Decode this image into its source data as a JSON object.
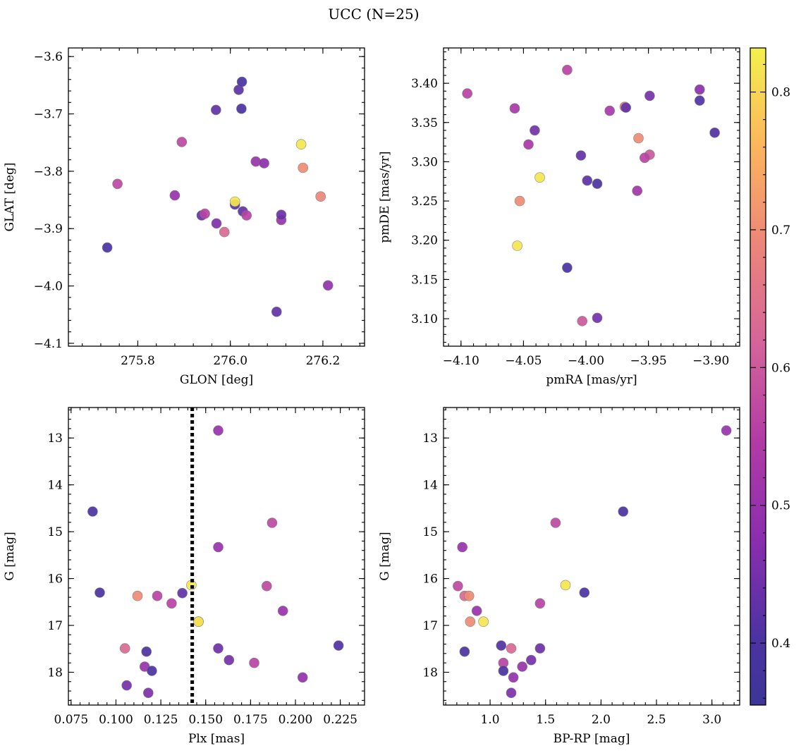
{
  "figure": {
    "title": "UCC (N=25)"
  },
  "chart_data": [
    {
      "type": "scatter",
      "xlabel": "GLON [deg]",
      "ylabel": "GLAT [deg]",
      "xlim": [
        275.65,
        276.29
      ],
      "ylim": [
        -4.105,
        -3.585
      ],
      "y_inverted": false,
      "x_ticks": [
        275.8,
        276.0,
        276.2
      ],
      "x_tick_labels": [
        "275.8",
        "276.0",
        "276.2"
      ],
      "y_ticks": [
        -4.1,
        -4.0,
        -3.9,
        -3.8,
        -3.7,
        -3.6
      ],
      "y_tick_labels": [
        "−4.1",
        "−4.0",
        "−3.9",
        "−3.8",
        "−3.7",
        "−3.6"
      ],
      "points": [
        {
          "x": 275.734,
          "y": -3.933,
          "c": 0.4
        },
        {
          "x": 275.756,
          "y": -3.822,
          "c": 0.57
        },
        {
          "x": 275.895,
          "y": -3.749,
          "c": 0.57
        },
        {
          "x": 275.88,
          "y": -3.842,
          "c": 0.5
        },
        {
          "x": 275.938,
          "y": -3.877,
          "c": 0.43
        },
        {
          "x": 275.945,
          "y": -3.874,
          "c": 0.56
        },
        {
          "x": 275.969,
          "y": -3.693,
          "c": 0.43
        },
        {
          "x": 275.97,
          "y": -3.891,
          "c": 0.46
        },
        {
          "x": 275.987,
          "y": -3.906,
          "c": 0.63
        },
        {
          "x": 276.01,
          "y": -3.858,
          "c": 0.42
        },
        {
          "x": 276.01,
          "y": -3.853,
          "c": 0.82
        },
        {
          "x": 276.018,
          "y": -3.658,
          "c": 0.42
        },
        {
          "x": 276.025,
          "y": -3.644,
          "c": 0.4
        },
        {
          "x": 276.024,
          "y": -3.691,
          "c": 0.4
        },
        {
          "x": 276.027,
          "y": -3.87,
          "c": 0.43
        },
        {
          "x": 276.035,
          "y": -3.877,
          "c": 0.56
        },
        {
          "x": 276.055,
          "y": -3.783,
          "c": 0.5
        },
        {
          "x": 276.073,
          "y": -3.786,
          "c": 0.48
        },
        {
          "x": 276.1,
          "y": -4.045,
          "c": 0.43
        },
        {
          "x": 276.11,
          "y": -3.885,
          "c": 0.5
        },
        {
          "x": 276.11,
          "y": -3.876,
          "c": 0.44
        },
        {
          "x": 276.153,
          "y": -3.753,
          "c": 0.82
        },
        {
          "x": 276.157,
          "y": -3.794,
          "c": 0.7
        },
        {
          "x": 276.195,
          "y": -3.844,
          "c": 0.69
        },
        {
          "x": 276.211,
          "y": -3.999,
          "c": 0.49
        }
      ]
    },
    {
      "type": "scatter",
      "xlabel": "pmRA [mas/yr]",
      "ylabel": "pmDE [mas/yr]",
      "xlim": [
        -4.114,
        -3.877
      ],
      "ylim": [
        3.065,
        3.445
      ],
      "y_inverted": false,
      "x_ticks": [
        -4.1,
        -4.05,
        -4.0,
        -3.95,
        -3.9
      ],
      "x_tick_labels": [
        "−4.10",
        "−4.05",
        "−4.00",
        "−3.95",
        "−3.90"
      ],
      "y_ticks": [
        3.1,
        3.15,
        3.2,
        3.25,
        3.3,
        3.35,
        3.4
      ],
      "y_tick_labels": [
        "3.10",
        "3.15",
        "3.20",
        "3.25",
        "3.30",
        "3.35",
        "3.40"
      ],
      "points": [
        {
          "x": -4.095,
          "y": 3.387,
          "c": 0.56
        },
        {
          "x": -4.057,
          "y": 3.368,
          "c": 0.53
        },
        {
          "x": -4.041,
          "y": 3.34,
          "c": 0.45
        },
        {
          "x": -4.046,
          "y": 3.322,
          "c": 0.53
        },
        {
          "x": -4.037,
          "y": 3.28,
          "c": 0.82
        },
        {
          "x": -4.053,
          "y": 3.25,
          "c": 0.7
        },
        {
          "x": -4.055,
          "y": 3.193,
          "c": 0.82
        },
        {
          "x": -4.015,
          "y": 3.417,
          "c": 0.56
        },
        {
          "x": -4.004,
          "y": 3.308,
          "c": 0.43
        },
        {
          "x": -3.999,
          "y": 3.276,
          "c": 0.42
        },
        {
          "x": -3.991,
          "y": 3.272,
          "c": 0.4
        },
        {
          "x": -4.015,
          "y": 3.165,
          "c": 0.4
        },
        {
          "x": -4.003,
          "y": 3.097,
          "c": 0.6
        },
        {
          "x": -3.991,
          "y": 3.101,
          "c": 0.45
        },
        {
          "x": -3.981,
          "y": 3.365,
          "c": 0.53
        },
        {
          "x": -3.969,
          "y": 3.37,
          "c": 0.67
        },
        {
          "x": -3.968,
          "y": 3.369,
          "c": 0.43
        },
        {
          "x": -3.958,
          "y": 3.33,
          "c": 0.7
        },
        {
          "x": -3.949,
          "y": 3.309,
          "c": 0.6
        },
        {
          "x": -3.953,
          "y": 3.305,
          "c": 0.56
        },
        {
          "x": -3.959,
          "y": 3.263,
          "c": 0.52
        },
        {
          "x": -3.949,
          "y": 3.384,
          "c": 0.45
        },
        {
          "x": -3.909,
          "y": 3.392,
          "c": 0.48
        },
        {
          "x": -3.909,
          "y": 3.378,
          "c": 0.41
        },
        {
          "x": -3.897,
          "y": 3.337,
          "c": 0.41
        }
      ]
    },
    {
      "type": "scatter",
      "xlabel": "Plx [mas]",
      "ylabel": "G [mag]",
      "xlim": [
        0.0735,
        0.2385
      ],
      "ylim": [
        18.7,
        12.35
      ],
      "y_inverted": true,
      "x_ticks": [
        0.075,
        0.1,
        0.125,
        0.15,
        0.175,
        0.2,
        0.225
      ],
      "x_tick_labels": [
        "0.075",
        "0.100",
        "0.125",
        "0.150",
        "0.175",
        "0.200",
        "0.225"
      ],
      "y_ticks": [
        13,
        14,
        15,
        16,
        17,
        18
      ],
      "y_tick_labels": [
        "13",
        "14",
        "15",
        "16",
        "17",
        "18"
      ],
      "vline": {
        "x": 0.1425,
        "style": "dotted"
      },
      "points": [
        {
          "x": 0.087,
          "y": 14.57,
          "c": 0.4
        },
        {
          "x": 0.091,
          "y": 16.3,
          "c": 0.4
        },
        {
          "x": 0.105,
          "y": 17.49,
          "c": 0.63
        },
        {
          "x": 0.106,
          "y": 18.28,
          "c": 0.45
        },
        {
          "x": 0.112,
          "y": 16.37,
          "c": 0.7
        },
        {
          "x": 0.116,
          "y": 17.88,
          "c": 0.5
        },
        {
          "x": 0.117,
          "y": 17.56,
          "c": 0.4
        },
        {
          "x": 0.118,
          "y": 18.44,
          "c": 0.46
        },
        {
          "x": 0.12,
          "y": 17.97,
          "c": 0.4
        },
        {
          "x": 0.123,
          "y": 16.37,
          "c": 0.56
        },
        {
          "x": 0.131,
          "y": 16.53,
          "c": 0.56
        },
        {
          "x": 0.137,
          "y": 16.31,
          "c": 0.43
        },
        {
          "x": 0.142,
          "y": 16.14,
          "c": 0.82
        },
        {
          "x": 0.146,
          "y": 16.92,
          "c": 0.7
        },
        {
          "x": 0.146,
          "y": 16.92,
          "c": 0.82
        },
        {
          "x": 0.157,
          "y": 12.84,
          "c": 0.5
        },
        {
          "x": 0.157,
          "y": 15.33,
          "c": 0.5
        },
        {
          "x": 0.157,
          "y": 17.49,
          "c": 0.44
        },
        {
          "x": 0.163,
          "y": 17.74,
          "c": 0.45
        },
        {
          "x": 0.177,
          "y": 17.8,
          "c": 0.56
        },
        {
          "x": 0.184,
          "y": 16.16,
          "c": 0.57
        },
        {
          "x": 0.187,
          "y": 14.81,
          "c": 0.57
        },
        {
          "x": 0.193,
          "y": 16.69,
          "c": 0.5
        },
        {
          "x": 0.204,
          "y": 18.11,
          "c": 0.49
        },
        {
          "x": 0.224,
          "y": 17.43,
          "c": 0.41
        }
      ]
    },
    {
      "type": "scatter",
      "xlabel": "BP-RP [mag]",
      "ylabel": "G [mag]",
      "xlim": [
        0.58,
        3.25
      ],
      "ylim": [
        18.7,
        12.35
      ],
      "y_inverted": true,
      "x_ticks": [
        1.0,
        1.5,
        2.0,
        2.5,
        3.0
      ],
      "x_tick_labels": [
        "1.0",
        "1.5",
        "2.0",
        "2.5",
        "3.0"
      ],
      "y_ticks": [
        13,
        14,
        15,
        16,
        17,
        18
      ],
      "y_tick_labels": [
        "13",
        "14",
        "15",
        "16",
        "17",
        "18"
      ],
      "points": [
        {
          "x": 0.71,
          "y": 16.16,
          "c": 0.57
        },
        {
          "x": 0.75,
          "y": 15.33,
          "c": 0.5
        },
        {
          "x": 0.77,
          "y": 16.37,
          "c": 0.63
        },
        {
          "x": 0.77,
          "y": 17.56,
          "c": 0.4
        },
        {
          "x": 0.81,
          "y": 16.37,
          "c": 0.7
        },
        {
          "x": 0.82,
          "y": 16.92,
          "c": 0.7
        },
        {
          "x": 0.88,
          "y": 16.69,
          "c": 0.5
        },
        {
          "x": 0.94,
          "y": 16.92,
          "c": 0.82
        },
        {
          "x": 1.1,
          "y": 17.43,
          "c": 0.41
        },
        {
          "x": 1.12,
          "y": 17.8,
          "c": 0.56
        },
        {
          "x": 1.12,
          "y": 17.97,
          "c": 0.4
        },
        {
          "x": 1.19,
          "y": 17.49,
          "c": 0.63
        },
        {
          "x": 1.19,
          "y": 18.44,
          "c": 0.46
        },
        {
          "x": 1.21,
          "y": 18.11,
          "c": 0.49
        },
        {
          "x": 1.29,
          "y": 17.88,
          "c": 0.5
        },
        {
          "x": 1.37,
          "y": 17.74,
          "c": 0.45
        },
        {
          "x": 1.45,
          "y": 16.53,
          "c": 0.56
        },
        {
          "x": 1.45,
          "y": 17.49,
          "c": 0.44
        },
        {
          "x": 1.59,
          "y": 14.81,
          "c": 0.57
        },
        {
          "x": 1.68,
          "y": 16.14,
          "c": 0.82
        },
        {
          "x": 1.85,
          "y": 16.3,
          "c": 0.4
        },
        {
          "x": 2.2,
          "y": 14.57,
          "c": 0.4
        },
        {
          "x": 3.13,
          "y": 12.84,
          "c": 0.5
        }
      ]
    }
  ],
  "colorbar": {
    "colormap": "plasma",
    "range": [
      0.355,
      0.832
    ],
    "ticks": [
      0.4,
      0.5,
      0.6,
      0.7,
      0.8
    ],
    "tick_labels": [
      "0.4",
      "0.5",
      "0.6",
      "0.7",
      "0.8"
    ]
  }
}
